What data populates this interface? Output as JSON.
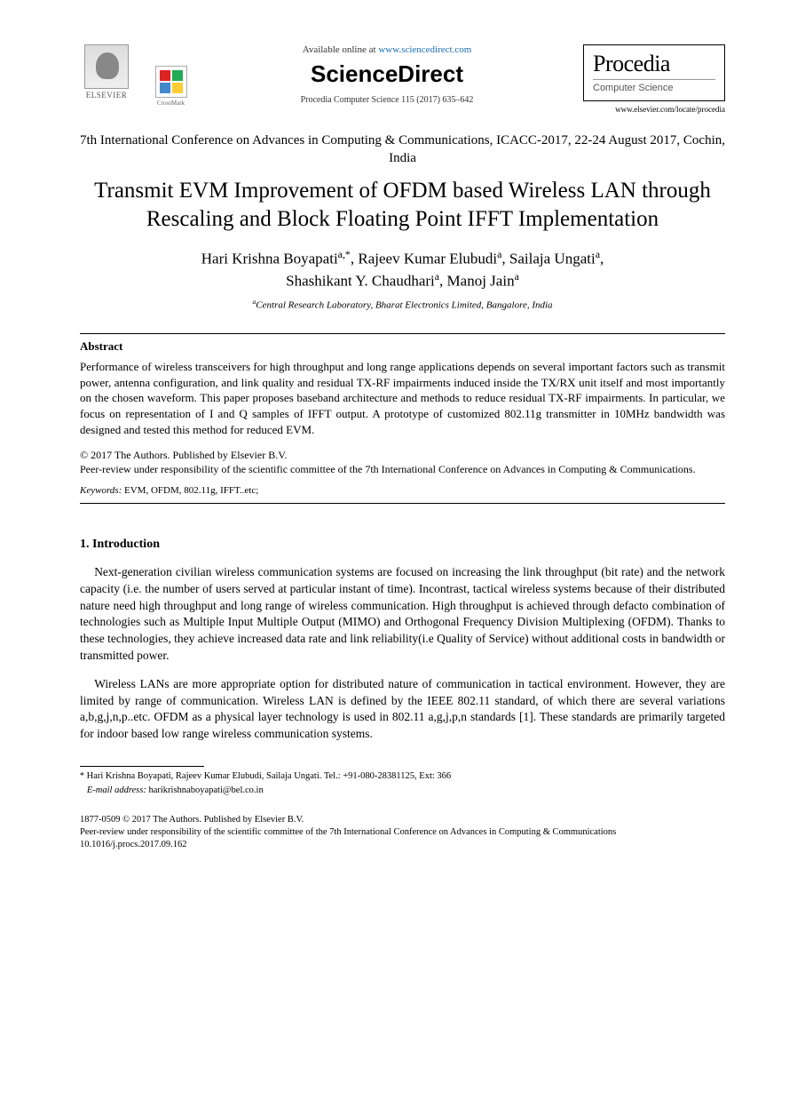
{
  "header": {
    "elsevier_label": "ELSEVIER",
    "crossmark_label": "CrossMark",
    "available_prefix": "Available online at ",
    "available_url": "www.sciencedirect.com",
    "sciencedirect": "ScienceDirect",
    "citation": "Procedia Computer Science 115 (2017) 635–642",
    "procedia_title": "Procedia",
    "procedia_sub": "Computer Science",
    "procedia_url": "www.elsevier.com/locate/procedia"
  },
  "conference": "7th International Conference on Advances in Computing & Communications, ICACC-2017, 22-24 August 2017, Cochin, India",
  "title": "Transmit EVM Improvement of OFDM based Wireless LAN through Rescaling and Block Floating Point IFFT Implementation",
  "authors_line1": "Hari Krishna Boyapati",
  "authors_sup1": "a,*",
  "authors_sep1": ", Rajeev Kumar Elubudi",
  "authors_sup2": "a",
  "authors_sep2": ", Sailaja Ungati",
  "authors_sup3": "a",
  "authors_sep3": ",",
  "authors_line2a": "Shashikant Y. Chaudhari",
  "authors_sup4": "a",
  "authors_sep4": ", Manoj Jain",
  "authors_sup5": "a",
  "affiliation_sup": "a",
  "affiliation": "Central Research Laboratory, Bharat Electronics Limited, Bangalore, India",
  "abstract_heading": "Abstract",
  "abstract_text": "Performance of wireless transceivers for high throughput and long range applications depends on several important factors such as transmit power, antenna configuration, and link quality and residual TX-RF impairments induced inside the TX/RX unit itself and most importantly on the chosen waveform. This paper proposes baseband architecture and methods to reduce residual TX-RF impairments. In particular, we focus on representation of I and Q samples of IFFT output. A prototype of customized 802.11g transmitter in 10MHz bandwidth was designed and tested this method for reduced EVM.",
  "copyright_line1": "© 2017 The Authors. Published by Elsevier B.V.",
  "copyright_line2": "Peer-review under responsibility of the scientific committee of the 7th International Conference on Advances in Computing & Communications.",
  "keywords_label": "Keywords:",
  "keywords_text": "  EVM, OFDM, 802.11g, IFFT..etc;",
  "intro_heading": "1.  Introduction",
  "intro_p1": "Next-generation civilian wireless communication systems are focused on increasing the link throughput (bit rate) and the network capacity (i.e. the number of users served at particular instant of time). Incontrast, tactical wireless systems because of their distributed nature need high throughput and long range of wireless communication. High throughput is achieved through defacto combination of technologies such as Multiple Input Multiple Output (MIMO) and Orthogonal Frequency Division Multiplexing (OFDM). Thanks to these technologies, they achieve increased data rate and link reliability(i.e Quality of Service) without additional costs in bandwidth or transmitted power.",
  "intro_p2": "Wireless LANs are more appropriate option for distributed nature of communication in tactical environment. However, they are limited by range of communication. Wireless LAN is defined by the IEEE 802.11 standard, of which there are several variations a,b,g,j,n,p..etc. OFDM as a physical layer technology is used in 802.11 a,g,j,p,n standards [1]. These standards are primarily targeted for indoor based low range wireless communication systems.",
  "footnote_star": "*",
  "footnote_authors": "  Hari Krishna Boyapati, Rajeev Kumar Elubudi, Sailaja Ungati. Tel.: +91-080-28381125, Ext: 366",
  "footnote_email_label": "E-mail address:",
  "footnote_email": " harikrishnaboyapati@bel.co.in",
  "footer_issn": "1877-0509 © 2017 The Authors. Published by Elsevier B.V.",
  "footer_peer": "Peer-review under responsibility of the scientific committee of the 7th International Conference on Advances in Computing & Communications",
  "footer_doi": "10.1016/j.procs.2017.09.162"
}
